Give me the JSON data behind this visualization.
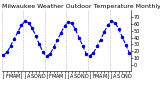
{
  "title": "Milwaukee Weather Outdoor Temperature Monthly Low",
  "values": [
    14,
    18,
    28,
    38,
    48,
    58,
    64,
    62,
    54,
    42,
    30,
    18,
    12,
    16,
    26,
    36,
    47,
    57,
    63,
    61,
    52,
    40,
    28,
    16,
    13,
    17,
    27,
    37,
    48,
    58,
    64,
    62,
    53,
    41,
    29,
    17
  ],
  "month_labels": [
    "J",
    "F",
    "M",
    "A",
    "M",
    "J",
    "J",
    "A",
    "S",
    "O",
    "N",
    "D",
    "J",
    "F",
    "M",
    "A",
    "M",
    "J",
    "J",
    "A",
    "S",
    "O",
    "N",
    "D",
    "J",
    "F",
    "M",
    "A",
    "M",
    "J",
    "J",
    "A",
    "S",
    "O",
    "N",
    "D"
  ],
  "line_color": "#0000cc",
  "linestyle": "--",
  "marker": "o",
  "marker_size": 1.5,
  "linewidth": 0.8,
  "ylim": [
    -10,
    80
  ],
  "yticks": [
    0,
    10,
    20,
    30,
    40,
    50,
    60,
    70
  ],
  "grid_color": "#bbbbbb",
  "bg_color": "#ffffff",
  "title_fontsize": 4.5,
  "tick_fontsize": 3.5
}
